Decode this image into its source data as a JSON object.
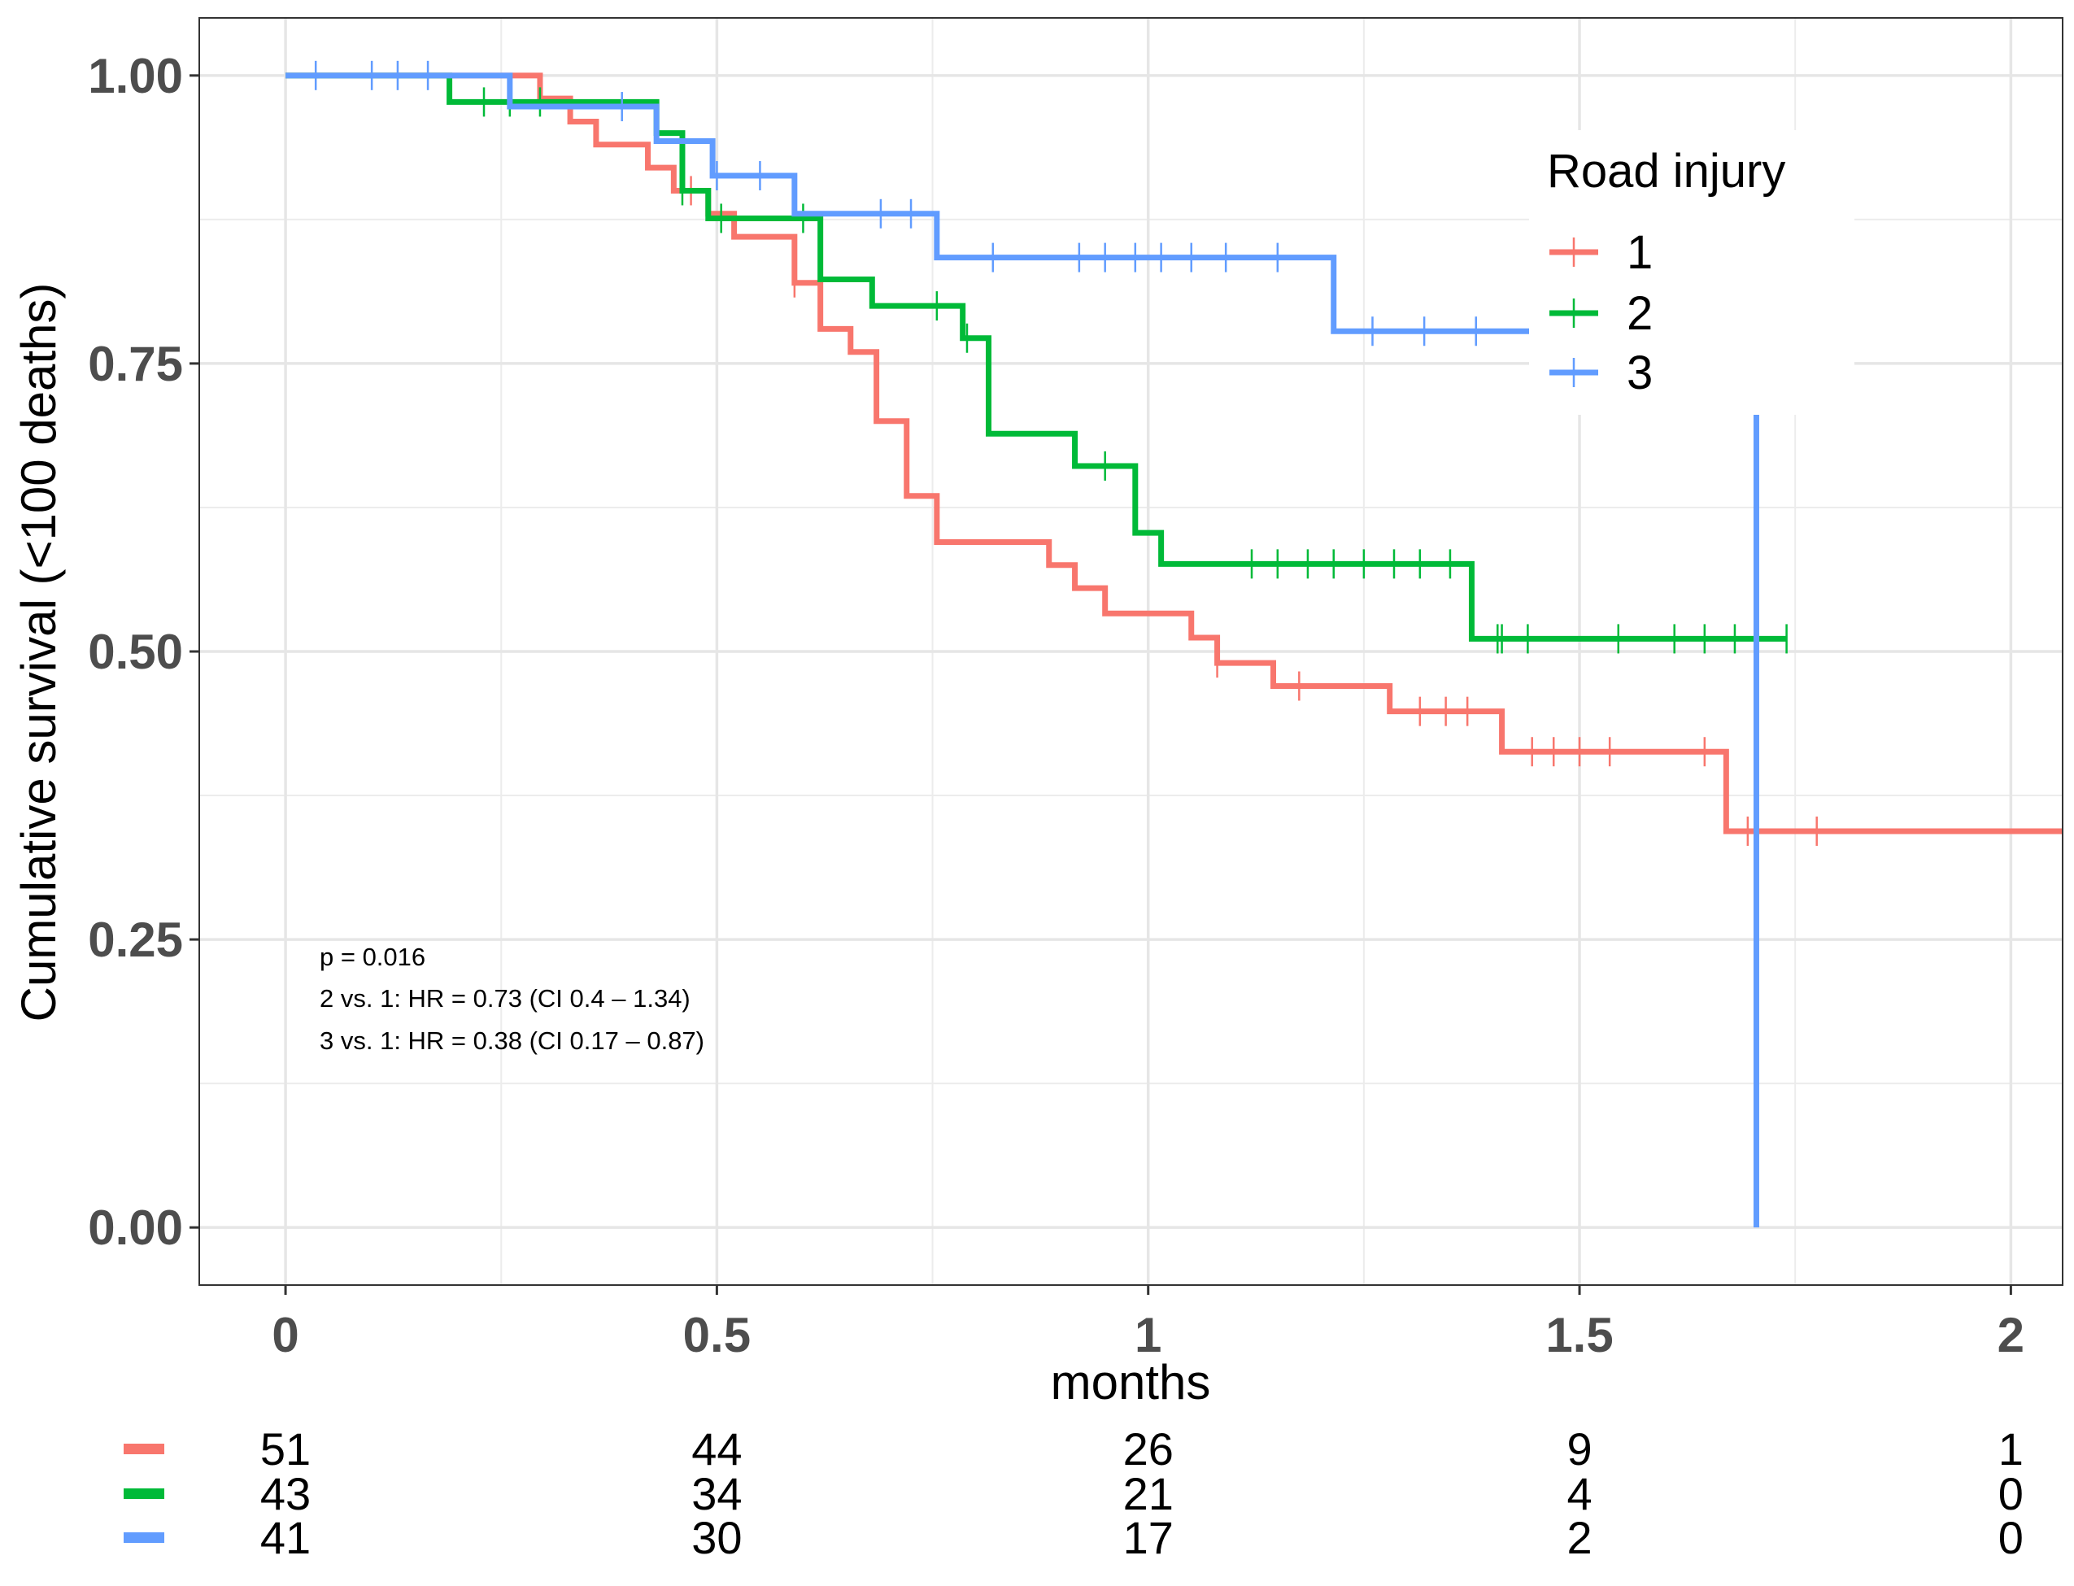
{
  "chart_data": {
    "type": "line",
    "subtype": "kaplan-meier step curves with censor marks and risk table",
    "xlabel": "months",
    "ylabel": "Cumulative survival (<100 deaths)",
    "xlim": [
      -0.1,
      2.06
    ],
    "ylim": [
      -0.05,
      1.05
    ],
    "x_ticks": [
      0,
      0.5,
      1,
      1.5,
      2
    ],
    "x_tick_labels": [
      "0",
      "0.5",
      "1",
      "1.5",
      "2"
    ],
    "y_ticks": [
      0,
      0.25,
      0.5,
      0.75,
      1
    ],
    "y_tick_labels": [
      "0.00",
      "0.25",
      "0.50",
      "0.75",
      "1.00"
    ],
    "grid": true,
    "legend": {
      "title": "Road injury",
      "placement": "top-right inside",
      "entries": [
        "1",
        "2",
        "3"
      ]
    },
    "annotations": [
      "p = 0.016",
      "2 vs. 1: HR = 0.73 (CI 0.4 – 1.34)",
      "3 vs. 1: HR = 0.38 (CI 0.17 – 0.87)"
    ],
    "series": [
      {
        "name": "1",
        "color": "#F8766D",
        "steps": [
          [
            0,
            1.0
          ],
          [
            0.295,
            0.98
          ],
          [
            0.33,
            0.96
          ],
          [
            0.36,
            0.94
          ],
          [
            0.42,
            0.92
          ],
          [
            0.45,
            0.9
          ],
          [
            0.49,
            0.88
          ],
          [
            0.52,
            0.86
          ],
          [
            0.59,
            0.82
          ],
          [
            0.62,
            0.78
          ],
          [
            0.655,
            0.76
          ],
          [
            0.685,
            0.7
          ],
          [
            0.72,
            0.635
          ],
          [
            0.755,
            0.595
          ],
          [
            0.885,
            0.575
          ],
          [
            0.915,
            0.555
          ],
          [
            0.95,
            0.533
          ],
          [
            1.05,
            0.512
          ],
          [
            1.08,
            0.49
          ],
          [
            1.145,
            0.47
          ],
          [
            1.28,
            0.448
          ],
          [
            1.41,
            0.413
          ],
          [
            1.67,
            0.344
          ],
          [
            2.06,
            0.344
          ]
        ],
        "censor_times": [
          0.47,
          0.59,
          1.08,
          1.175,
          1.315,
          1.345,
          1.37,
          1.445,
          1.47,
          1.5,
          1.535,
          1.645,
          1.695,
          1.775
        ]
      },
      {
        "name": "2",
        "color": "#00BA38",
        "steps": [
          [
            0,
            1.0
          ],
          [
            0.19,
            0.977
          ],
          [
            0.43,
            0.95
          ],
          [
            0.46,
            0.9
          ],
          [
            0.49,
            0.876
          ],
          [
            0.62,
            0.823
          ],
          [
            0.68,
            0.8
          ],
          [
            0.785,
            0.772
          ],
          [
            0.815,
            0.689
          ],
          [
            0.915,
            0.661
          ],
          [
            0.985,
            0.603
          ],
          [
            1.015,
            0.576
          ],
          [
            1.375,
            0.511
          ],
          [
            1.74,
            0.511
          ]
        ],
        "censor_times": [
          0.23,
          0.26,
          0.295,
          0.46,
          0.505,
          0.6,
          0.755,
          0.79,
          0.95,
          1.12,
          1.15,
          1.185,
          1.215,
          1.25,
          1.285,
          1.315,
          1.35,
          1.405,
          1.41,
          1.44,
          1.545,
          1.61,
          1.645,
          1.68,
          1.74
        ]
      },
      {
        "name": "3",
        "color": "#619CFF",
        "steps": [
          [
            0,
            1.0
          ],
          [
            0.26,
            0.973
          ],
          [
            0.43,
            0.943
          ],
          [
            0.495,
            0.913
          ],
          [
            0.59,
            0.88
          ],
          [
            0.755,
            0.842
          ],
          [
            1.215,
            0.778
          ],
          [
            1.705,
            0.778
          ]
        ],
        "censor_times": [
          0.035,
          0.1,
          0.13,
          0.165,
          0.39,
          0.5,
          0.55,
          0.69,
          0.725,
          0.82,
          0.92,
          0.95,
          0.985,
          1.015,
          1.05,
          1.09,
          1.15,
          1.26,
          1.32,
          1.38
        ],
        "drop": {
          "x": 1.705,
          "from": 0.778,
          "to": 0.0
        }
      }
    ],
    "risk_table": {
      "times": [
        0,
        0.5,
        1,
        1.5,
        2
      ],
      "rows": [
        {
          "group": "1",
          "color": "#F8766D",
          "values": [
            "51",
            "44",
            "26",
            "9",
            "1"
          ]
        },
        {
          "group": "2",
          "color": "#00BA38",
          "values": [
            "43",
            "34",
            "21",
            "4",
            "0"
          ]
        },
        {
          "group": "3",
          "color": "#619CFF",
          "values": [
            "41",
            "30",
            "17",
            "2",
            "0"
          ]
        }
      ]
    }
  }
}
